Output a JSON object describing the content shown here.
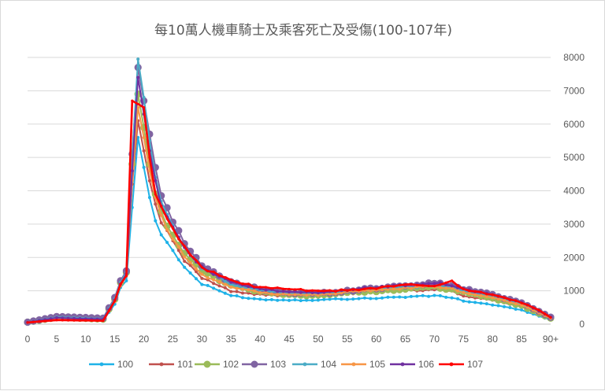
{
  "chart_data": {
    "type": "line",
    "title": "每10萬人機車騎士及乘客死亡及受傷(100-107年)",
    "xlabel": "",
    "ylabel": "",
    "x_tick_labels": [
      "0",
      "5",
      "10",
      "15",
      "20",
      "25",
      "30",
      "35",
      "40",
      "45",
      "50",
      "55",
      "60",
      "65",
      "70",
      "75",
      "80",
      "85",
      "90+"
    ],
    "y_tick_labels": [
      "0",
      "1000",
      "2000",
      "3000",
      "4000",
      "5000",
      "6000",
      "7000",
      "8000"
    ],
    "ylim": [
      0,
      8000
    ],
    "xlim": [
      0,
      90
    ],
    "grid": "horizontal",
    "y_axis_position": "right",
    "legend_position": "bottom",
    "key_points": [
      0,
      5,
      10,
      13,
      15,
      16,
      17,
      18,
      19,
      20,
      21,
      22,
      23,
      25,
      27,
      30,
      35,
      40,
      45,
      50,
      55,
      60,
      65,
      70,
      73,
      75,
      80,
      85,
      88,
      90
    ],
    "series": [
      {
        "name": "100",
        "color": "#1FB2E8",
        "marker": "dot-small",
        "values": [
          40,
          150,
          120,
          110,
          600,
          1100,
          1300,
          3500,
          5600,
          4700,
          3800,
          3100,
          2700,
          2200,
          1700,
          1200,
          860,
          740,
          720,
          730,
          760,
          780,
          820,
          850,
          800,
          700,
          580,
          420,
          240,
          130
        ]
      },
      {
        "name": "101",
        "color": "#C0504D",
        "marker": "dot-small",
        "values": [
          50,
          180,
          140,
          130,
          700,
          1200,
          1500,
          4200,
          6100,
          5200,
          4300,
          3600,
          3000,
          2500,
          1900,
          1400,
          1000,
          880,
          850,
          860,
          920,
          960,
          1000,
          1050,
          980,
          860,
          720,
          520,
          300,
          160
        ]
      },
      {
        "name": "102",
        "color": "#9BBB59",
        "marker": "dot-large",
        "values": [
          60,
          200,
          170,
          150,
          750,
          1250,
          1550,
          4800,
          6900,
          5900,
          4800,
          3900,
          3300,
          2700,
          2100,
          1600,
          1150,
          980,
          880,
          870,
          950,
          1000,
          1050,
          1120,
          1050,
          950,
          780,
          560,
          330,
          180
        ]
      },
      {
        "name": "103",
        "color": "#8064A2",
        "marker": "dot-large",
        "values": [
          60,
          230,
          200,
          180,
          800,
          1300,
          1600,
          5100,
          7700,
          6700,
          5700,
          4700,
          3900,
          3100,
          2400,
          1750,
          1250,
          1050,
          930,
          920,
          1000,
          1080,
          1150,
          1230,
          1150,
          1050,
          880,
          640,
          380,
          210
        ]
      },
      {
        "name": "104",
        "color": "#4BACC6",
        "marker": "dot-small",
        "values": [
          50,
          210,
          180,
          160,
          760,
          1250,
          1550,
          5000,
          7950,
          6800,
          5500,
          4400,
          3700,
          3000,
          2300,
          1700,
          1200,
          1000,
          920,
          900,
          980,
          1050,
          1100,
          1150,
          1080,
          980,
          820,
          600,
          350,
          190
        ]
      },
      {
        "name": "105",
        "color": "#F79646",
        "marker": "dot-small",
        "values": [
          45,
          170,
          140,
          130,
          680,
          1150,
          1450,
          4300,
          6500,
          5600,
          4600,
          3800,
          3200,
          2600,
          2000,
          1500,
          1100,
          950,
          880,
          880,
          960,
          1020,
          1080,
          1130,
          1060,
          960,
          800,
          580,
          340,
          180
        ]
      },
      {
        "name": "106",
        "color": "#7030A0",
        "marker": "dot-small",
        "values": [
          50,
          190,
          160,
          150,
          720,
          1200,
          1500,
          4600,
          7400,
          6300,
          5200,
          4300,
          3600,
          2950,
          2300,
          1700,
          1250,
          1050,
          960,
          950,
          1030,
          1100,
          1180,
          1250,
          1170,
          1060,
          880,
          650,
          390,
          210
        ]
      },
      {
        "name": "107",
        "color": "#FF0000",
        "marker": "dot-tiny",
        "values": [
          50,
          120,
          110,
          100,
          700,
          1200,
          1450,
          6700,
          6600,
          6500,
          5000,
          3900,
          3500,
          2900,
          2300,
          1700,
          1300,
          1100,
          1050,
          980,
          1020,
          1080,
          1180,
          1150,
          1300,
          1050,
          880,
          650,
          420,
          200
        ]
      }
    ]
  },
  "colors": {
    "grid": "#D9D9D9",
    "axis": "#BFBFBF",
    "text": "#595959"
  }
}
